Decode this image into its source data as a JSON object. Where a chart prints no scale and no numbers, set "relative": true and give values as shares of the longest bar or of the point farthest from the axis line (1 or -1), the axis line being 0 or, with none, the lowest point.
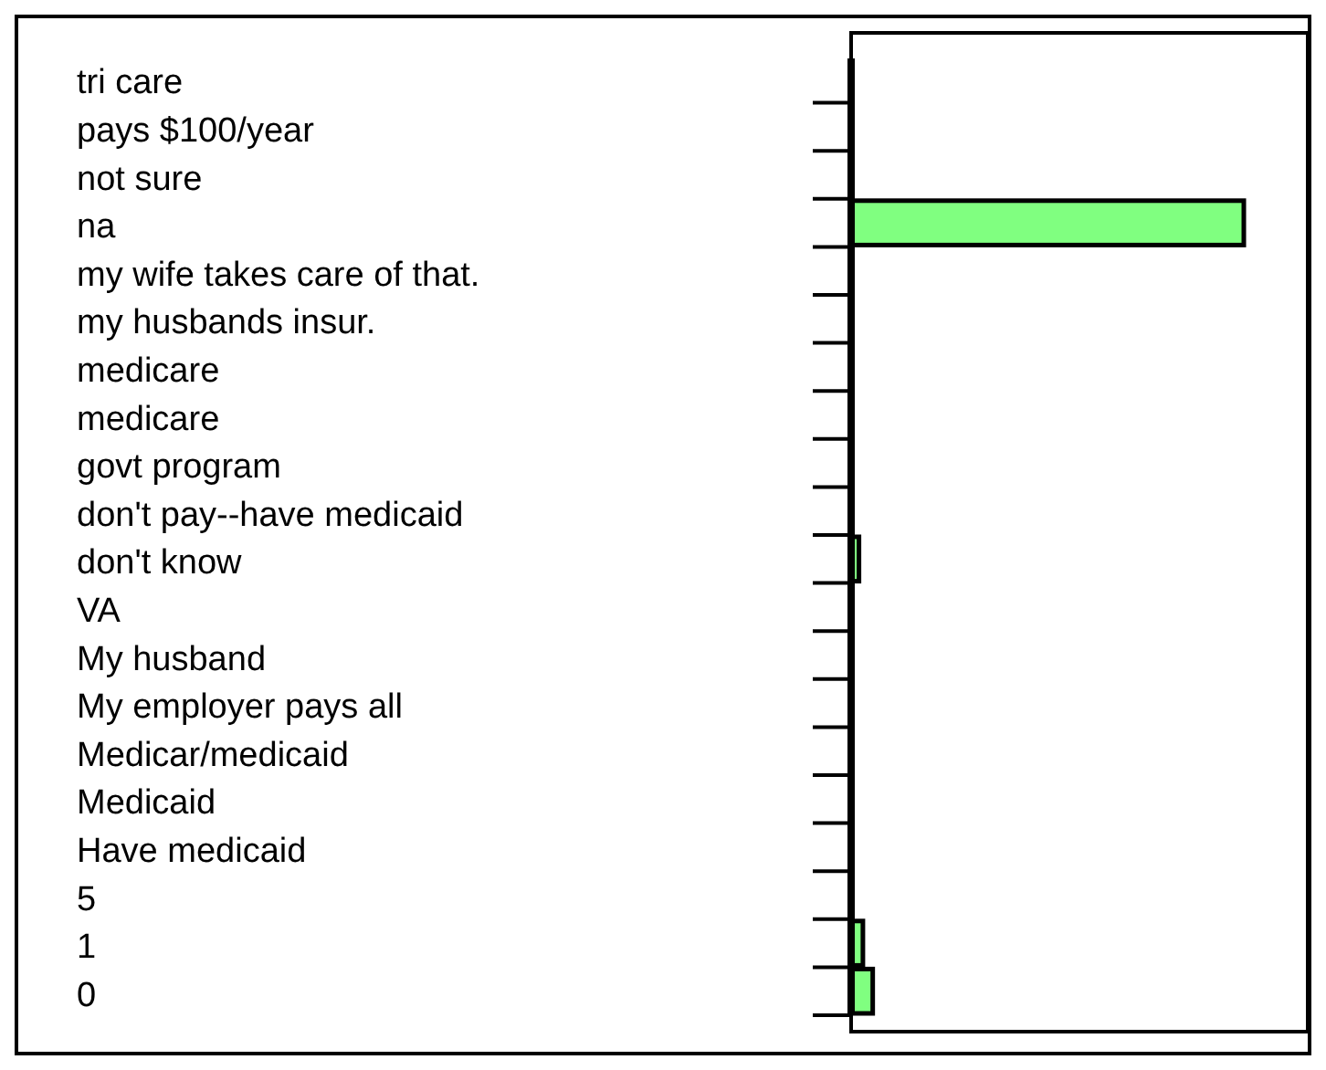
{
  "chart_data": {
    "type": "bar",
    "orientation": "horizontal",
    "relative": true,
    "categories": [
      "tri care",
      "pays $100/year",
      "not sure",
      "na",
      "my wife takes care of that.",
      "my husbands insur.",
      "medicare",
      "medicare",
      "govt program",
      "don't pay--have medicaid",
      "don't know",
      "VA",
      "My husband",
      "My employer pays all",
      "Medicar/medicaid",
      "Medicaid",
      "Have medicaid",
      "5",
      "1",
      "0"
    ],
    "values": [
      0,
      0,
      0,
      1,
      0,
      0,
      0,
      0,
      0,
      0,
      0.02,
      0,
      0,
      0,
      0,
      0,
      0,
      0,
      0.03,
      0.055
    ],
    "color": "#80ff80"
  }
}
